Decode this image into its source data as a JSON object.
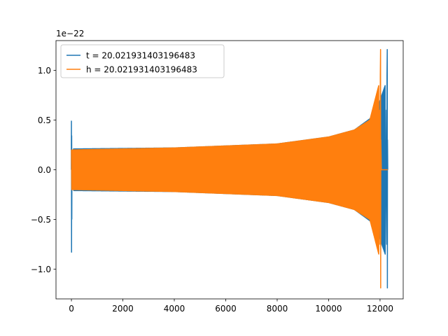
{
  "chart_data": {
    "type": "line",
    "title": "",
    "xlabel": "",
    "ylabel": "",
    "y_offset_text": "1e−22",
    "y_scale_exponent": -22,
    "xlim": [
      -600,
      12900
    ],
    "ylim": [
      -1.3,
      1.3
    ],
    "x_ticks": [
      0,
      2000,
      4000,
      6000,
      8000,
      10000,
      12000
    ],
    "x_tick_labels": [
      "0",
      "2000",
      "4000",
      "6000",
      "8000",
      "10000",
      "12000"
    ],
    "y_ticks": [
      -1.0,
      -0.5,
      0.0,
      0.5,
      1.0
    ],
    "y_tick_labels": [
      "−1.0",
      "−0.5",
      "0.0",
      "0.5",
      "1.0"
    ],
    "grid": false,
    "legend_position": "upper left",
    "series": [
      {
        "name": "t = 20.021931403196483",
        "color": "#1f77b4",
        "description_points": {
          "start_spike": {
            "x": 0,
            "ymax": 0.49,
            "ymin": -0.83
          },
          "envelope": [
            {
              "x": 80,
              "amp": 0.21
            },
            {
              "x": 4000,
              "amp": 0.22
            },
            {
              "x": 8000,
              "amp": 0.26
            },
            {
              "x": 10000,
              "amp": 0.33
            },
            {
              "x": 11000,
              "amp": 0.4
            },
            {
              "x": 11800,
              "amp": 0.55
            },
            {
              "x": 12200,
              "amp": 0.85
            }
          ],
          "merger": {
            "x": 12280,
            "ymax": 1.21,
            "ymin": -1.19
          },
          "end_x": 12300
        }
      },
      {
        "name": "h = 20.021931403196483",
        "color": "#ff7f0e",
        "description_points": {
          "envelope": [
            {
              "x": 0,
              "amp": 0.2
            },
            {
              "x": 4000,
              "amp": 0.22
            },
            {
              "x": 8000,
              "amp": 0.26
            },
            {
              "x": 10000,
              "amp": 0.33
            },
            {
              "x": 11000,
              "amp": 0.4
            },
            {
              "x": 11600,
              "amp": 0.5
            },
            {
              "x": 11950,
              "amp": 0.85
            }
          ],
          "merger": {
            "x": 12020,
            "ymax": 1.21,
            "ymin": -1.19
          },
          "flat_after": [
            12050,
            12300
          ]
        }
      }
    ]
  }
}
